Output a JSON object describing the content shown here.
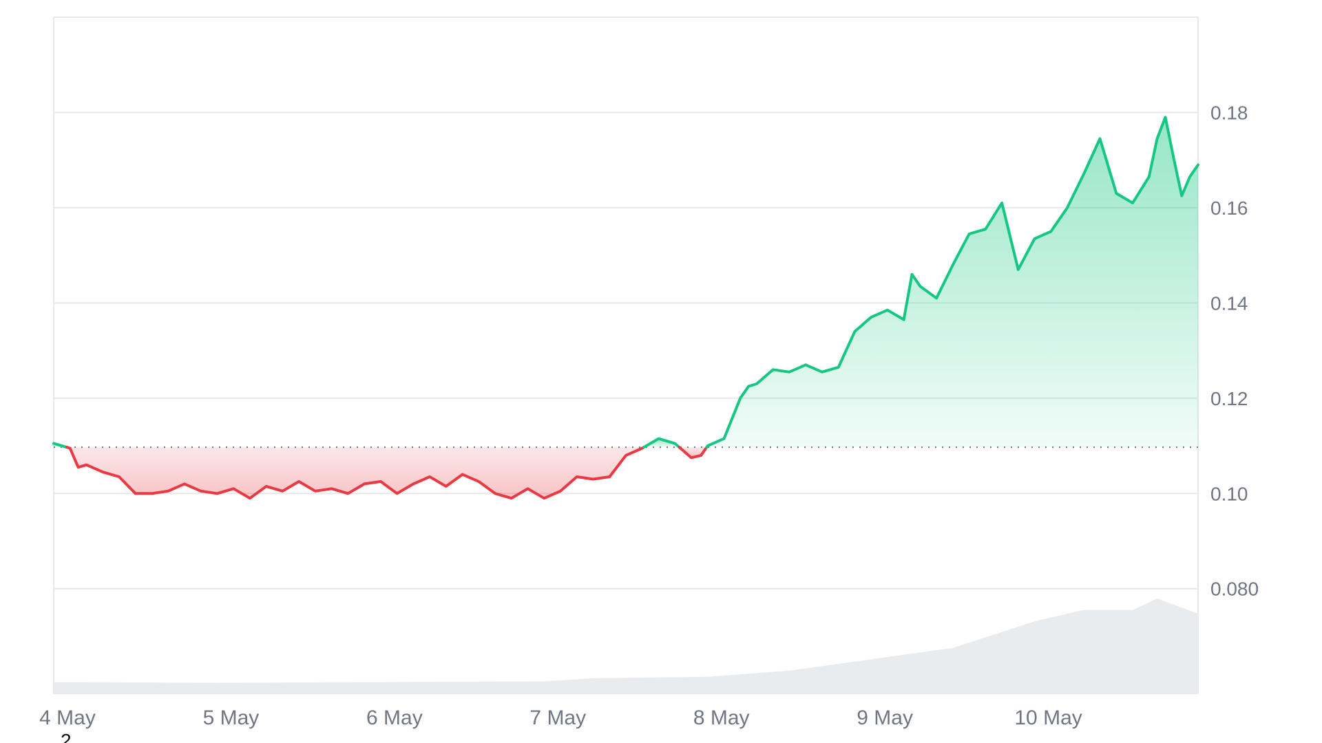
{
  "chart_data": {
    "type": "area",
    "title": "",
    "xlabel": "",
    "ylabel": "",
    "x_ticks": [
      "4 May",
      "5 May",
      "6 May",
      "7 May",
      "8 May",
      "9 May",
      "10 May"
    ],
    "y_ticks": [
      "0.080",
      "0.10",
      "0.12",
      "0.14",
      "0.16",
      "0.18"
    ],
    "ylim": [
      0.058,
      0.2
    ],
    "y_axis_side": "right",
    "grid": "horizontal",
    "baseline": 0.1097,
    "baseline_style": "dotted",
    "colors": {
      "above": "#16c784",
      "below": "#ea3943",
      "volume": "#e9ecef",
      "grid": "#e6e8ec",
      "axis_text": "#6f7682"
    },
    "series": [
      {
        "x_days": [
          0,
          0.1,
          0.15,
          0.2,
          0.3,
          0.4,
          0.5,
          0.6,
          0.7,
          0.8,
          0.9,
          1.0,
          1.1,
          1.2,
          1.3,
          1.4,
          1.5,
          1.6,
          1.7,
          1.8,
          1.9,
          2.0,
          2.1,
          2.2,
          2.3,
          2.4,
          2.5,
          2.6,
          2.7,
          2.8,
          2.9,
          3.0,
          3.1,
          3.2,
          3.3,
          3.4,
          3.5,
          3.6,
          3.7,
          3.8,
          3.9,
          3.96,
          4.0,
          4.1,
          4.2,
          4.25,
          4.3,
          4.4,
          4.5,
          4.6,
          4.7,
          4.8,
          4.9,
          5.0,
          5.1,
          5.2,
          5.25,
          5.3,
          5.4,
          5.5,
          5.6,
          5.7,
          5.8,
          5.9,
          6.0,
          6.1,
          6.2,
          6.3,
          6.4,
          6.5,
          6.6,
          6.7,
          6.75,
          6.8,
          6.85,
          6.9,
          6.95,
          7.0
        ],
        "values": [
          0.1105,
          0.1095,
          0.1055,
          0.106,
          0.1045,
          0.1035,
          0.1,
          0.1,
          0.1005,
          0.102,
          0.1005,
          0.1,
          0.101,
          0.099,
          0.1015,
          0.1005,
          0.1025,
          0.1005,
          0.101,
          0.1,
          0.102,
          0.1025,
          0.1,
          0.102,
          0.1035,
          0.1015,
          0.104,
          0.1025,
          0.1,
          0.099,
          0.101,
          0.099,
          0.1005,
          0.1035,
          0.103,
          0.1035,
          0.108,
          0.1095,
          0.1115,
          0.1105,
          0.1075,
          0.108,
          0.11,
          0.1115,
          0.12,
          0.1225,
          0.123,
          0.126,
          0.1255,
          0.127,
          0.1255,
          0.1265,
          0.134,
          0.137,
          0.1385,
          0.1365,
          0.146,
          0.1435,
          0.141,
          0.148,
          0.1545,
          0.1555,
          0.161,
          0.147,
          0.1535,
          0.155,
          0.16,
          0.167,
          0.1745,
          0.163,
          0.161,
          0.1665,
          0.1745,
          0.179,
          0.1705,
          0.1625,
          0.1665,
          0.169
        ]
      }
    ],
    "volume_area": {
      "x_days": [
        0,
        1,
        2,
        3,
        3.3,
        4,
        4.5,
        5,
        5.5,
        6,
        6.3,
        6.6,
        6.75,
        7.0
      ],
      "relative_values": [
        0.15,
        0.14,
        0.15,
        0.16,
        0.2,
        0.22,
        0.3,
        0.45,
        0.6,
        0.95,
        1.1,
        1.1,
        1.25,
        1.05
      ]
    },
    "footnote": "2"
  }
}
